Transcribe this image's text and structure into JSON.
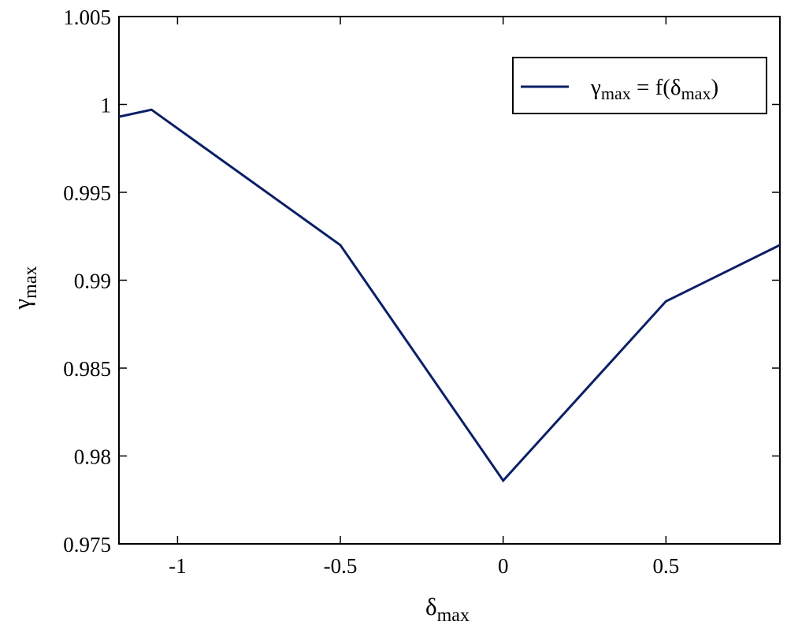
{
  "chart_data": {
    "type": "line",
    "x": [
      -1.18,
      -1.08,
      -0.5,
      0.0,
      0.5,
      0.85
    ],
    "series": [
      {
        "name": "γmax = f(δmax)",
        "values": [
          0.9993,
          0.9997,
          0.992,
          0.9786,
          0.9888,
          0.992
        ],
        "color": "#0b1f66"
      }
    ],
    "xlabel": "δmax",
    "xlabel_main": "δ",
    "xlabel_sub": "max",
    "ylabel": "γmax",
    "ylabel_main": "γ",
    "ylabel_sub": "max",
    "xlim": [
      -1.18,
      0.85
    ],
    "ylim": [
      0.975,
      1.005
    ],
    "xticks": [
      -1,
      -0.5,
      0,
      0.5
    ],
    "xtick_labels": [
      "-1",
      "-0.5",
      "0",
      "0.5"
    ],
    "yticks": [
      0.975,
      0.98,
      0.985,
      0.99,
      0.995,
      1.0,
      1.005
    ],
    "ytick_labels": [
      "0.975",
      "0.98",
      "0.985",
      "0.99",
      "0.995",
      "1",
      "1.005"
    ],
    "grid": false,
    "legend": {
      "position": "top-right",
      "parts": [
        "γ",
        "max",
        " = f(δ",
        "max",
        ")"
      ]
    }
  }
}
